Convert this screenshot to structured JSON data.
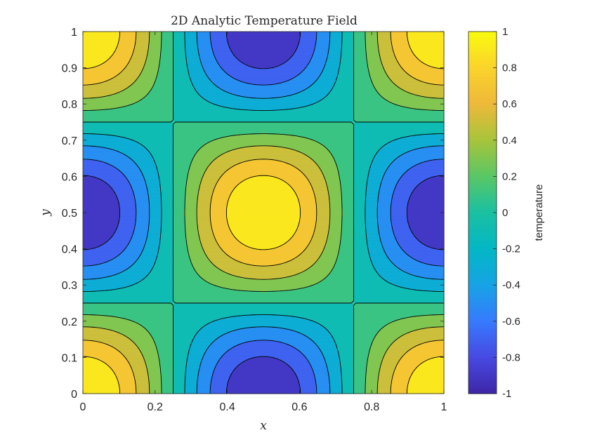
{
  "chart_data": {
    "type": "contour",
    "title": "2D Analytic Temperature Field",
    "xlabel": "x",
    "ylabel": "y",
    "function": "cos(2*pi*x)*cos(2*pi*y)",
    "xlim": [
      0,
      1
    ],
    "ylim": [
      0,
      1
    ],
    "xticks": [
      "0",
      "0.2",
      "0.4",
      "0.6",
      "0.8",
      "1"
    ],
    "xtick_values": [
      0,
      0.2,
      0.4,
      0.6,
      0.8,
      1
    ],
    "yticks": [
      "0",
      "0.1",
      "0.2",
      "0.3",
      "0.4",
      "0.5",
      "0.6",
      "0.7",
      "0.8",
      "0.9",
      "1"
    ],
    "ytick_values": [
      0,
      0.1,
      0.2,
      0.3,
      0.4,
      0.5,
      0.6,
      0.7,
      0.8,
      0.9,
      1
    ],
    "contour_levels": [
      -0.8,
      -0.6,
      -0.4,
      -0.2,
      0,
      0.2,
      0.4,
      0.6,
      0.8
    ],
    "colormap": "parula",
    "colorbar": {
      "label": "temperature",
      "limits": [
        -1,
        1
      ],
      "ticks": [
        "-1",
        "-0.8",
        "-0.6",
        "-0.4",
        "-0.2",
        "0",
        "0.2",
        "0.4",
        "0.6",
        "0.8",
        "1"
      ],
      "tick_values": [
        -1,
        -0.8,
        -0.6,
        -0.4,
        -0.2,
        0,
        0.2,
        0.4,
        0.6,
        0.8,
        1
      ]
    },
    "grid": false
  }
}
